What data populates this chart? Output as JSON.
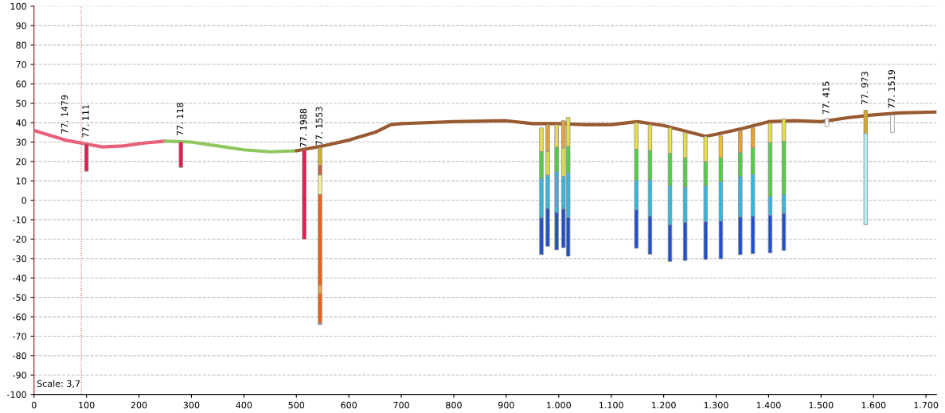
{
  "chart_data": {
    "type": "bar",
    "xlim": [
      0,
      1720
    ],
    "ylim": [
      -100,
      100
    ],
    "xticks": [
      0,
      100,
      200,
      300,
      400,
      500,
      600,
      700,
      800,
      900,
      {
        "value": 1000,
        "label": "1.000"
      },
      {
        "value": 1100,
        "label": "1.100"
      },
      {
        "value": 1200,
        "label": "1.200"
      },
      {
        "value": 1300,
        "label": "1.300"
      },
      {
        "value": 1400,
        "label": "1.400"
      },
      {
        "value": 1500,
        "label": "1.500"
      },
      {
        "value": 1600,
        "label": "1.600"
      },
      {
        "value": 1700,
        "label": "1.700"
      }
    ],
    "yticks": [
      -100,
      -90,
      -80,
      -70,
      -60,
      -50,
      -40,
      -30,
      -20,
      -10,
      0,
      10,
      20,
      30,
      40,
      50,
      60,
      70,
      80,
      90,
      100
    ],
    "grid": "y",
    "series": [
      {
        "type": "line",
        "color": "#e8607a",
        "x": [
          0,
          30,
          60,
          100,
          130,
          170,
          210,
          250
        ],
        "values": [
          36,
          33.5,
          31,
          29,
          27.5,
          28,
          29.5,
          30.5
        ]
      },
      {
        "type": "line",
        "color": "#90c860",
        "x": [
          250,
          300,
          350,
          400,
          450,
          500
        ],
        "values": [
          30.5,
          30,
          28,
          26,
          25,
          25.5
        ]
      },
      {
        "type": "line",
        "color": "#985a30",
        "x": [
          500,
          550,
          600,
          650,
          680,
          700,
          800,
          900,
          950,
          1000,
          1050,
          1100,
          1150,
          1200,
          1250,
          1280,
          1300,
          1350,
          1400,
          1450,
          1500,
          1550,
          1600,
          1650,
          1720
        ],
        "values": [
          25.5,
          28,
          31,
          35,
          39,
          39.5,
          40.5,
          41,
          39.5,
          39.5,
          39,
          39,
          40.5,
          38.5,
          35,
          33,
          34,
          37,
          40.5,
          41,
          40.5,
          42.5,
          44,
          45,
          45.5
        ]
      },
      {
        "color": "#e8174f",
        "x": [
          100,
          280,
          515
        ],
        "base": [
          15,
          17,
          -20
        ],
        "values": [
          14,
          13,
          46
        ]
      },
      {
        "x": [
          545
        ],
        "base": [
          18
        ],
        "values": [
          9
        ],
        "color": "#d4b020"
      },
      {
        "x": [
          545
        ],
        "base": [
          13
        ],
        "values": [
          5
        ],
        "color": "#c0603c"
      },
      {
        "x": [
          545
        ],
        "base": [
          3
        ],
        "values": [
          10
        ],
        "color": "#f8f0a0"
      },
      {
        "x": [
          545
        ],
        "base": [
          -44
        ],
        "values": [
          47
        ],
        "color": "#f06010"
      },
      {
        "x": [
          545
        ],
        "base": [
          -48
        ],
        "values": [
          4
        ],
        "color": "#f0a840"
      },
      {
        "x": [
          545
        ],
        "base": [
          -63
        ],
        "values": [
          15
        ],
        "color": "#f06010"
      },
      {
        "x": [
          545
        ],
        "base": [
          -64
        ],
        "values": [
          1
        ],
        "color": "#a08070"
      },
      {
        "x": [
          967,
          979,
          996,
          1009,
          1018,
          1148,
          1174,
          1212,
          1241,
          1280,
          1309,
          1346,
          1370,
          1403,
          1429
        ],
        "base": [
          25,
          25,
          27.3,
          27,
          27.7,
          26.3,
          25.6,
          24.2,
          21.8,
          19.9,
          21.9,
          24.5,
          27,
          29.7,
          30.4
        ],
        "values": [
          12.3,
          13.9,
          11.6,
          14,
          15,
          13.7,
          13.3,
          13.1,
          13,
          13,
          11.3,
          11.4,
          10.3,
          10,
          11.6
        ],
        "colors": [
          "#e8e040",
          "#e8a030",
          "#e8e040",
          "#e8a030",
          "#e8e040",
          "#e8e040",
          "#e8e040",
          "#e8e040",
          "#e8e040",
          "#e8e040",
          "#f0c030",
          "#e8a030",
          "#e8a030",
          "#e8e040",
          "#e8e040"
        ]
      },
      {
        "x": [
          967,
          979,
          996,
          1009,
          1018,
          1148,
          1174,
          1212,
          1241,
          1280,
          1309,
          1346,
          1370,
          1403,
          1429
        ],
        "base": [
          11.2,
          12.9,
          14.7,
          12.3,
          14,
          10.1,
          10.5,
          7.4,
          6.8,
          7.4,
          9.5,
          12.3,
          13.3,
          1.9,
          3
        ],
        "values": [
          13.8,
          12.1,
          12.6,
          14.7,
          13.7,
          16.2,
          15.1,
          16.8,
          15,
          12.5,
          12.4,
          12.2,
          13.7,
          27.8,
          27.4
        ],
        "colors": [
          "#50d040",
          "#d8e040",
          "#50d040",
          "#d8e040",
          "#50d040",
          "#50d040",
          "#50d040",
          "#50d040",
          "#50d040",
          "#50d040",
          "#50d040",
          "#50d040",
          "#50d040",
          "#50d040",
          "#50d040"
        ]
      },
      {
        "color": "#30b8e0",
        "x": [
          967,
          979,
          996,
          1009,
          1018,
          1148,
          1174,
          1212,
          1241,
          1280,
          1309,
          1346,
          1370,
          1403,
          1429
        ],
        "base": [
          -9,
          -4.2,
          -6.3,
          -4.5,
          -8.9,
          -4.9,
          -8.2,
          -12.5,
          -11.4,
          -11.1,
          -10.7,
          -8.6,
          -8.2,
          -7.7,
          -6.8
        ],
        "values": [
          20.2,
          17.1,
          21,
          16.8,
          22.9,
          15,
          18.7,
          19.9,
          18.2,
          18.5,
          20.2,
          20.9,
          21.5,
          9.6,
          9.8
        ]
      },
      {
        "color": "#1e50d0",
        "x": [
          967,
          979,
          996,
          1009,
          1018,
          1148,
          1174,
          1212,
          1241,
          1280,
          1309,
          1346,
          1370,
          1403,
          1429
        ],
        "base": [
          -28,
          -23.7,
          -25.5,
          -24.4,
          -28.8,
          -24.7,
          -27.8,
          -31.5,
          -31,
          -30.5,
          -30.1,
          -28,
          -27.5,
          -27.1,
          -25.8
        ],
        "values": [
          19,
          19.5,
          19.2,
          19.9,
          19.9,
          19.8,
          19.6,
          19,
          19.6,
          19.4,
          19.4,
          19.4,
          19.3,
          19.4,
          19
        ]
      },
      {
        "color": "#ffffff",
        "x": [
          1511
        ],
        "base": [
          38
        ],
        "values": [
          4
        ]
      },
      {
        "x": [
          1585
        ],
        "base": [
          34.4
        ],
        "values": [
          12
        ],
        "color": "#d4a820"
      },
      {
        "x": [
          1585
        ],
        "base": [
          -12.6
        ],
        "values": [
          47
        ],
        "color": "#b0f0f0"
      },
      {
        "color": "#ffffff",
        "x": [
          1636
        ],
        "base": [
          35
        ],
        "values": [
          9
        ]
      }
    ],
    "ref_lines": [
      {
        "axis": "x",
        "value": 90,
        "color": "#e06060",
        "line_style": "dotted"
      }
    ],
    "annotations": [
      {
        "text": "77. 1479",
        "x": 60,
        "y": 33
      },
      {
        "text": "77. 111",
        "x": 100,
        "y": 31
      },
      {
        "text": "77. 118",
        "x": 280,
        "y": 32
      },
      {
        "text": "77. 1988",
        "x": 515,
        "y": 26
      },
      {
        "text": "77. 1553",
        "x": 545,
        "y": 27
      },
      {
        "text": "77. 415",
        "x": 1511,
        "y": 43
      },
      {
        "text": "77. 973",
        "x": 1585,
        "y": 48
      },
      {
        "text": "77. 1519",
        "x": 1636,
        "y": 46
      },
      "Scale: 3,7"
    ]
  }
}
